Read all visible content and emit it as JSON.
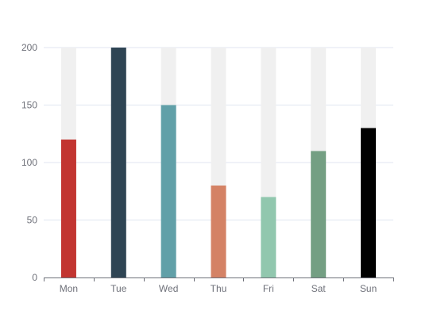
{
  "chart_data": {
    "type": "bar",
    "categories": [
      "Mon",
      "Tue",
      "Wed",
      "Thu",
      "Fri",
      "Sat",
      "Sun"
    ],
    "values": [
      120,
      200,
      150,
      80,
      70,
      110,
      130
    ],
    "background_max": 200,
    "ylim": [
      0,
      200
    ],
    "y_ticks": [
      0,
      50,
      100,
      150,
      200
    ],
    "grid": true,
    "legend": "none",
    "colors": [
      "#c23531",
      "#2f4554",
      "#61a0a8",
      "#d48265",
      "#91c7ae",
      "#749f83",
      "#000000"
    ],
    "background_color": "#f0f0f0",
    "title": "",
    "xlabel": "",
    "ylabel": ""
  }
}
